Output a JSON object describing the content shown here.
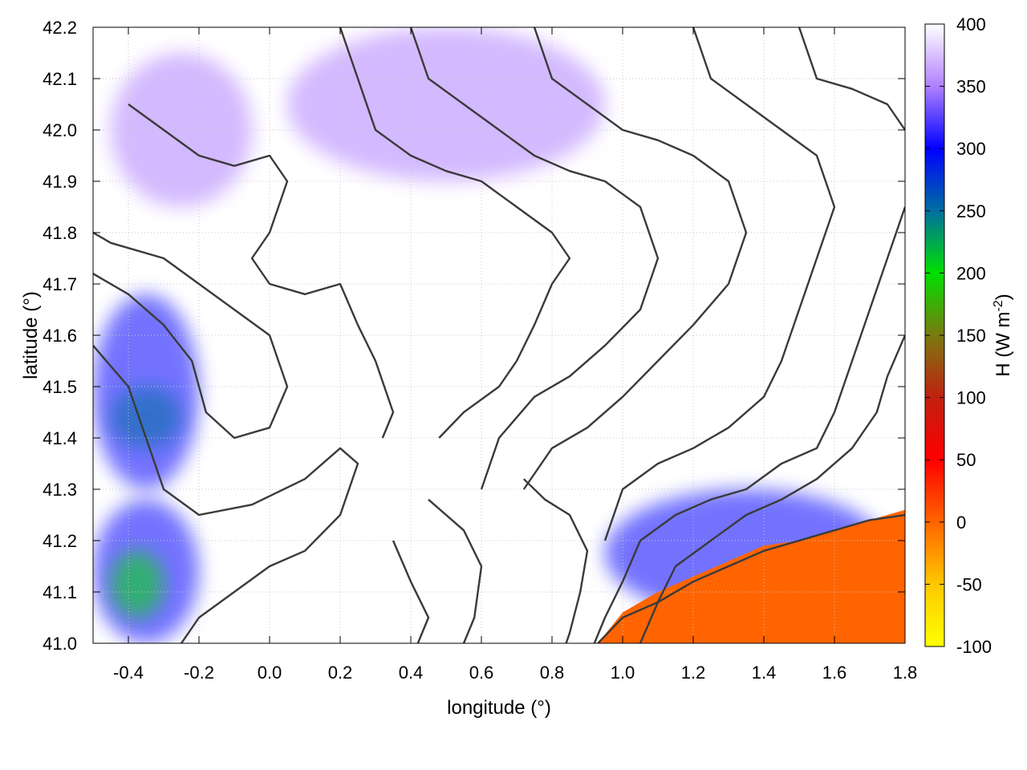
{
  "chart_data": {
    "type": "heatmap",
    "title": "",
    "xlabel": "longitude (°)",
    "ylabel": "latitude (°)",
    "xlim": [
      -0.5,
      1.8
    ],
    "ylim": [
      41.0,
      42.2
    ],
    "x_ticks": [
      -0.4,
      -0.2,
      0.0,
      0.2,
      0.4,
      0.6,
      0.8,
      1.0,
      1.2,
      1.4,
      1.6,
      1.8
    ],
    "y_ticks": [
      41.0,
      41.1,
      41.2,
      41.3,
      41.4,
      41.5,
      41.6,
      41.7,
      41.8,
      41.9,
      42.0,
      42.1,
      42.2
    ],
    "x_tick_labels": [
      "-0.4",
      "-0.2",
      "0.0",
      "0.2",
      "0.4",
      "0.6",
      "0.8",
      "1.0",
      "1.2",
      "1.4",
      "1.6",
      "1.8"
    ],
    "y_tick_labels": [
      "41.0",
      "41.1",
      "41.2",
      "41.3",
      "41.4",
      "41.5",
      "41.6",
      "41.7",
      "41.8",
      "41.9",
      "42.0",
      "42.1",
      "42.2"
    ],
    "grid": true,
    "colorbar": {
      "label_prefix": "H (W m",
      "label_exponent": "-2",
      "label_suffix": ")",
      "range": [
        -100,
        400
      ],
      "ticks": [
        -100,
        -50,
        0,
        50,
        100,
        150,
        200,
        250,
        300,
        350,
        400
      ],
      "tick_labels": [
        "-100",
        "-50",
        "0",
        "50",
        "100",
        "150",
        "200",
        "250",
        "300",
        "350",
        "400"
      ],
      "stops": [
        {
          "value": -100,
          "color": "#ffff00"
        },
        {
          "value": -50,
          "color": "#ffc800"
        },
        {
          "value": 0,
          "color": "#ff6400"
        },
        {
          "value": 50,
          "color": "#ff0000"
        },
        {
          "value": 100,
          "color": "#c02010"
        },
        {
          "value": 150,
          "color": "#7a7a10"
        },
        {
          "value": 200,
          "color": "#00e000"
        },
        {
          "value": 250,
          "color": "#006ea0"
        },
        {
          "value": 300,
          "color": "#0000ff"
        },
        {
          "value": 350,
          "color": "#b080ff"
        },
        {
          "value": 400,
          "color": "#ffffff"
        }
      ]
    },
    "field_regions": [
      {
        "name": "nw-hills",
        "value": 340,
        "lon": [
          -0.45,
          -0.05
        ],
        "lat": [
          41.85,
          42.15
        ]
      },
      {
        "name": "north-band",
        "value": 330,
        "lon": [
          0.05,
          0.95
        ],
        "lat": [
          41.9,
          42.2
        ]
      },
      {
        "name": "west-valley",
        "value": 280,
        "lon": [
          -0.5,
          -0.2
        ],
        "lat": [
          41.3,
          41.68
        ]
      },
      {
        "name": "west-valley-core",
        "value": 210,
        "lon": [
          -0.45,
          -0.25
        ],
        "lat": [
          41.38,
          41.5
        ]
      },
      {
        "name": "southwest-lowland",
        "value": 270,
        "lon": [
          -0.5,
          -0.2
        ],
        "lat": [
          41.0,
          41.28
        ]
      },
      {
        "name": "southwest-core",
        "value": 200,
        "lon": [
          -0.45,
          -0.3
        ],
        "lat": [
          41.05,
          41.18
        ]
      },
      {
        "name": "southeast-coast",
        "value": 300,
        "lon": [
          0.95,
          1.75
        ],
        "lat": [
          41.05,
          41.3
        ]
      },
      {
        "name": "sea",
        "value": 0,
        "lon": [
          0.93,
          1.8
        ],
        "lat": [
          41.0,
          41.22
        ]
      }
    ],
    "contours": [
      [
        [
          -0.5,
          41.72
        ],
        [
          -0.4,
          41.68
        ],
        [
          -0.3,
          41.62
        ],
        [
          -0.22,
          41.55
        ],
        [
          -0.18,
          41.45
        ],
        [
          -0.1,
          41.4
        ],
        [
          0.0,
          41.42
        ],
        [
          0.05,
          41.5
        ],
        [
          0.0,
          41.6
        ],
        [
          -0.1,
          41.65
        ],
        [
          -0.2,
          41.7
        ],
        [
          -0.3,
          41.75
        ],
        [
          -0.45,
          41.78
        ],
        [
          -0.5,
          41.8
        ]
      ],
      [
        [
          -0.5,
          41.58
        ],
        [
          -0.4,
          41.5
        ],
        [
          -0.35,
          41.4
        ],
        [
          -0.3,
          41.3
        ],
        [
          -0.2,
          41.25
        ],
        [
          -0.05,
          41.27
        ],
        [
          0.1,
          41.32
        ],
        [
          0.2,
          41.38
        ],
        [
          0.25,
          41.35
        ],
        [
          0.2,
          41.25
        ],
        [
          0.1,
          41.18
        ],
        [
          0.0,
          41.15
        ],
        [
          -0.1,
          41.1
        ],
        [
          -0.2,
          41.05
        ],
        [
          -0.25,
          41.0
        ]
      ],
      [
        [
          -0.4,
          42.05
        ],
        [
          -0.3,
          42.0
        ],
        [
          -0.2,
          41.95
        ],
        [
          -0.1,
          41.93
        ],
        [
          0.0,
          41.95
        ],
        [
          0.05,
          41.9
        ],
        [
          0.0,
          41.8
        ],
        [
          -0.05,
          41.75
        ],
        [
          0.0,
          41.7
        ],
        [
          0.1,
          41.68
        ],
        [
          0.2,
          41.7
        ],
        [
          0.25,
          41.62
        ],
        [
          0.3,
          41.55
        ],
        [
          0.35,
          41.45
        ],
        [
          0.32,
          41.4
        ]
      ],
      [
        [
          0.2,
          42.2
        ],
        [
          0.25,
          42.1
        ],
        [
          0.3,
          42.0
        ],
        [
          0.4,
          41.95
        ],
        [
          0.5,
          41.92
        ],
        [
          0.6,
          41.9
        ],
        [
          0.7,
          41.85
        ],
        [
          0.8,
          41.8
        ],
        [
          0.85,
          41.75
        ],
        [
          0.8,
          41.7
        ],
        [
          0.75,
          41.62
        ],
        [
          0.7,
          41.55
        ],
        [
          0.65,
          41.5
        ],
        [
          0.55,
          41.45
        ],
        [
          0.48,
          41.4
        ]
      ],
      [
        [
          0.4,
          42.2
        ],
        [
          0.45,
          42.1
        ],
        [
          0.55,
          42.05
        ],
        [
          0.65,
          42.0
        ],
        [
          0.75,
          41.95
        ],
        [
          0.85,
          41.92
        ],
        [
          0.95,
          41.9
        ],
        [
          1.05,
          41.85
        ],
        [
          1.1,
          41.75
        ],
        [
          1.05,
          41.65
        ],
        [
          0.95,
          41.58
        ],
        [
          0.85,
          41.52
        ],
        [
          0.75,
          41.48
        ],
        [
          0.65,
          41.4
        ],
        [
          0.6,
          41.3
        ]
      ],
      [
        [
          0.75,
          42.2
        ],
        [
          0.8,
          42.1
        ],
        [
          0.9,
          42.05
        ],
        [
          1.0,
          42.0
        ],
        [
          1.1,
          41.98
        ],
        [
          1.2,
          41.95
        ],
        [
          1.3,
          41.9
        ],
        [
          1.35,
          41.8
        ],
        [
          1.3,
          41.7
        ],
        [
          1.2,
          41.62
        ],
        [
          1.1,
          41.55
        ],
        [
          1.0,
          41.48
        ],
        [
          0.9,
          41.42
        ],
        [
          0.8,
          41.38
        ],
        [
          0.72,
          41.3
        ]
      ],
      [
        [
          1.2,
          42.2
        ],
        [
          1.25,
          42.1
        ],
        [
          1.35,
          42.05
        ],
        [
          1.45,
          42.0
        ],
        [
          1.55,
          41.95
        ],
        [
          1.6,
          41.85
        ],
        [
          1.55,
          41.75
        ],
        [
          1.5,
          41.65
        ],
        [
          1.45,
          41.55
        ],
        [
          1.4,
          41.48
        ],
        [
          1.3,
          41.42
        ],
        [
          1.2,
          41.38
        ],
        [
          1.1,
          41.35
        ],
        [
          1.0,
          41.3
        ],
        [
          0.95,
          41.2
        ]
      ],
      [
        [
          1.5,
          42.2
        ],
        [
          1.55,
          42.1
        ],
        [
          1.65,
          42.08
        ],
        [
          1.75,
          42.05
        ],
        [
          1.8,
          42.0
        ]
      ],
      [
        [
          1.8,
          41.85
        ],
        [
          1.75,
          41.75
        ],
        [
          1.7,
          41.65
        ],
        [
          1.65,
          41.55
        ],
        [
          1.6,
          41.45
        ],
        [
          1.55,
          41.38
        ],
        [
          1.45,
          41.35
        ],
        [
          1.35,
          41.3
        ],
        [
          1.25,
          41.28
        ],
        [
          1.15,
          41.25
        ],
        [
          1.05,
          41.2
        ],
        [
          1.0,
          41.12
        ],
        [
          0.95,
          41.05
        ],
        [
          0.92,
          41.0
        ]
      ],
      [
        [
          1.8,
          41.6
        ],
        [
          1.75,
          41.52
        ],
        [
          1.72,
          41.45
        ],
        [
          1.65,
          41.38
        ],
        [
          1.55,
          41.32
        ],
        [
          1.45,
          41.28
        ],
        [
          1.35,
          41.25
        ],
        [
          1.25,
          41.2
        ],
        [
          1.15,
          41.15
        ],
        [
          1.1,
          41.08
        ],
        [
          1.05,
          41.0
        ]
      ],
      [
        [
          0.93,
          41.0
        ],
        [
          1.0,
          41.05
        ],
        [
          1.1,
          41.08
        ],
        [
          1.2,
          41.12
        ],
        [
          1.3,
          41.15
        ],
        [
          1.4,
          41.18
        ],
        [
          1.5,
          41.2
        ],
        [
          1.6,
          41.22
        ],
        [
          1.7,
          41.24
        ],
        [
          1.8,
          41.25
        ]
      ],
      [
        [
          0.45,
          41.28
        ],
        [
          0.55,
          41.22
        ],
        [
          0.6,
          41.15
        ],
        [
          0.58,
          41.05
        ],
        [
          0.55,
          41.0
        ]
      ],
      [
        [
          0.35,
          41.2
        ],
        [
          0.4,
          41.12
        ],
        [
          0.45,
          41.05
        ],
        [
          0.42,
          41.0
        ]
      ],
      [
        [
          0.72,
          41.32
        ],
        [
          0.78,
          41.28
        ],
        [
          0.85,
          41.25
        ],
        [
          0.9,
          41.18
        ],
        [
          0.88,
          41.1
        ],
        [
          0.85,
          41.02
        ],
        [
          0.84,
          41.0
        ]
      ]
    ]
  }
}
